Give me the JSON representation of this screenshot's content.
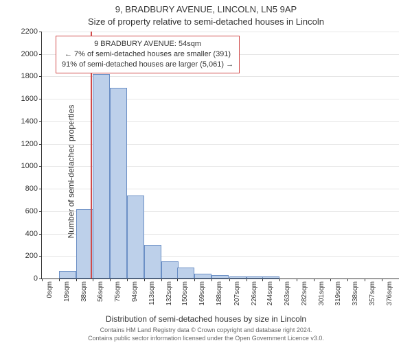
{
  "titles": {
    "line1": "9, BRADBURY AVENUE, LINCOLN, LN5 9AP",
    "line2": "Size of property relative to semi-detached houses in Lincoln"
  },
  "axes": {
    "ylabel": "Number of semi-detached properties",
    "xlabel": "Distribution of semi-detached houses by size in Lincoln",
    "ylim": [
      0,
      2200
    ],
    "ytick_step": 200,
    "yticks": [
      0,
      200,
      400,
      600,
      800,
      1000,
      1200,
      1400,
      1600,
      1800,
      2000,
      2200
    ],
    "xticks_sqm": [
      0,
      19,
      38,
      56,
      75,
      94,
      113,
      132,
      150,
      169,
      188,
      207,
      226,
      244,
      263,
      282,
      301,
      319,
      338,
      357,
      376
    ],
    "xtick_suffix": "sqm",
    "grid_color": "#e6e6e6",
    "axis_color": "#333333",
    "label_fontsize": 12,
    "tick_fontsize_y": 11,
    "tick_fontsize_x": 10
  },
  "chart": {
    "type": "histogram",
    "bin_width_sqm": 19,
    "x_max_sqm": 395,
    "bar_fill": "#bdd0ea",
    "bar_stroke": "#6b8fc5",
    "bars": [
      {
        "x0": 0,
        "count": 0
      },
      {
        "x0": 19,
        "count": 70
      },
      {
        "x0": 38,
        "count": 620
      },
      {
        "x0": 56,
        "count": 1820
      },
      {
        "x0": 75,
        "count": 1700
      },
      {
        "x0": 94,
        "count": 740
      },
      {
        "x0": 113,
        "count": 300
      },
      {
        "x0": 132,
        "count": 150
      },
      {
        "x0": 150,
        "count": 100
      },
      {
        "x0": 169,
        "count": 40
      },
      {
        "x0": 188,
        "count": 30
      },
      {
        "x0": 207,
        "count": 20
      },
      {
        "x0": 226,
        "count": 20
      },
      {
        "x0": 244,
        "count": 20
      },
      {
        "x0": 263,
        "count": 0
      },
      {
        "x0": 282,
        "count": 0
      },
      {
        "x0": 301,
        "count": 0
      },
      {
        "x0": 319,
        "count": 0
      },
      {
        "x0": 338,
        "count": 0
      },
      {
        "x0": 357,
        "count": 0
      },
      {
        "x0": 376,
        "count": 0
      }
    ]
  },
  "reference": {
    "sqm": 54,
    "line_color": "#d04a4a",
    "line_width": 2
  },
  "callout": {
    "border_color": "#d04a4a",
    "lines": {
      "l1": "9 BRADBURY AVENUE: 54sqm",
      "l2": "← 7% of semi-detached houses are smaller (391)",
      "l3": "91% of semi-detached houses are larger (5,061) →"
    }
  },
  "footer": {
    "l1": "Contains HM Land Registry data © Crown copyright and database right 2024.",
    "l2": "Contains public sector information licensed under the Open Government Licence v3.0."
  },
  "colors": {
    "background": "#ffffff",
    "text": "#333333",
    "footer_text": "#666666"
  }
}
